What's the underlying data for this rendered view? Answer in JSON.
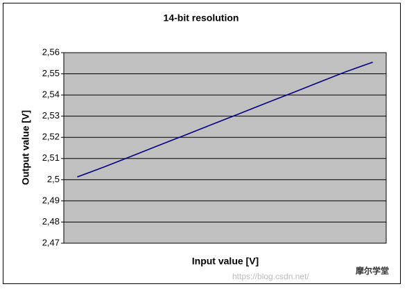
{
  "chart_data": {
    "type": "line",
    "title": "14-bit resolution",
    "x_label": "Input value [V]",
    "y_label": "Output value [V]",
    "categories": [
      null,
      null,
      null,
      null,
      null,
      null,
      null,
      null,
      null,
      null,
      null,
      null
    ],
    "values": [
      2.5013,
      2.506,
      2.511,
      2.516,
      2.521,
      2.526,
      2.531,
      2.536,
      2.541,
      2.546,
      2.551,
      2.5555
    ],
    "color": "#000080",
    "ylim": [
      2.47,
      2.56
    ],
    "yticks": [
      {
        "value": 2.47,
        "label": "2,47"
      },
      {
        "value": 2.48,
        "label": "2,48"
      },
      {
        "value": 2.49,
        "label": "2,49"
      },
      {
        "value": 2.5,
        "label": "2,5"
      },
      {
        "value": 2.51,
        "label": "2,51"
      },
      {
        "value": 2.52,
        "label": "2,52"
      },
      {
        "value": 2.53,
        "label": "2,53"
      },
      {
        "value": 2.54,
        "label": "2,54"
      },
      {
        "value": 2.55,
        "label": "2,55"
      },
      {
        "value": 2.56,
        "label": "2,56"
      }
    ],
    "grid": true,
    "plot_background": "#c0c0c0"
  },
  "watermark": {
    "url": "https://blog.csdn.net/",
    "name": "摩尔学堂"
  }
}
